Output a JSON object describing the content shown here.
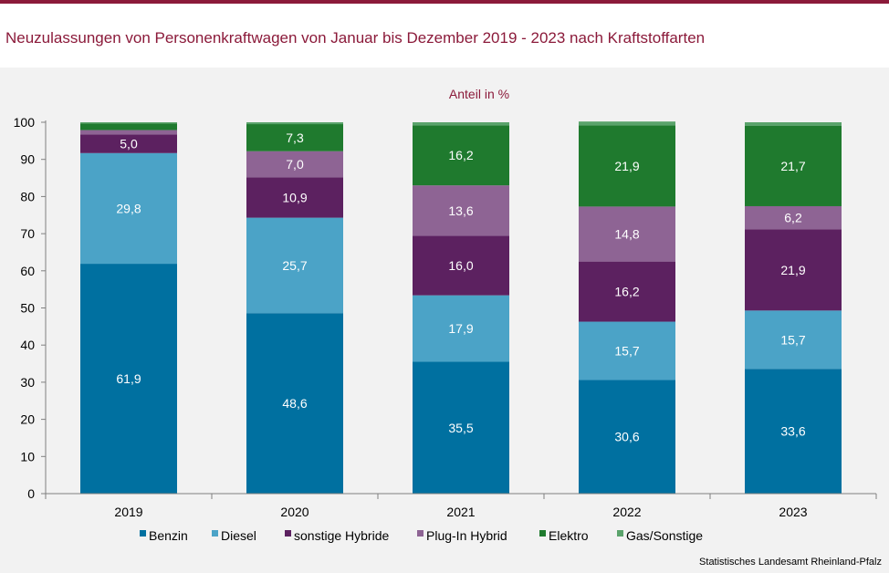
{
  "header": {
    "title": "Neuzulassungen von Personenkraftwagen von Januar bis Dezember  2019 - 2023 nach Kraftstoffarten"
  },
  "footer": {
    "source": "Statistisches Landesamt  Rheinland-Pfalz"
  },
  "chart_data": {
    "type": "bar",
    "stacked": true,
    "unit_label": "Anteil in %",
    "categories": [
      "2019",
      "2020",
      "2021",
      "2022",
      "2023"
    ],
    "ylim": [
      0,
      100
    ],
    "yticks": [
      0,
      10,
      20,
      30,
      40,
      50,
      60,
      70,
      80,
      90,
      100
    ],
    "grid": false,
    "legend_position": "bottom",
    "series": [
      {
        "name": "Benzin",
        "color": "#0070a0",
        "values": [
          61.9,
          48.6,
          35.5,
          30.6,
          33.6
        ],
        "labels": [
          "61,9",
          "48,6",
          "35,5",
          "30,6",
          "33,6"
        ]
      },
      {
        "name": "Diesel",
        "color": "#4ba3c7",
        "values": [
          29.8,
          25.7,
          17.9,
          15.7,
          15.7
        ],
        "labels": [
          "29,8",
          "25,7",
          "17,9",
          "15,7",
          "15,7"
        ]
      },
      {
        "name": "sonstige Hybride",
        "color": "#5c2160",
        "values": [
          5.0,
          10.9,
          16.0,
          16.2,
          21.9
        ],
        "labels": [
          "5,0",
          "10,9",
          "16,0",
          "16,2",
          "21,9"
        ]
      },
      {
        "name": "Plug-In Hybrid",
        "color": "#8e6494",
        "values": [
          1.2,
          7.0,
          13.6,
          14.8,
          6.2
        ],
        "labels": [
          "",
          "7,0",
          "13,6",
          "14,8",
          "6,2"
        ]
      },
      {
        "name": "Elektro",
        "color": "#1f7a2e",
        "values": [
          1.8,
          7.3,
          16.2,
          21.9,
          21.7
        ],
        "labels": [
          "",
          "7,3",
          "16,2",
          "21,9",
          "21,7"
        ]
      },
      {
        "name": "Gas/Sonstige",
        "color": "#5aa36b",
        "values": [
          0.3,
          0.5,
          0.8,
          1.0,
          0.9
        ],
        "labels": [
          "",
          "",
          "",
          "",
          ""
        ]
      }
    ]
  }
}
